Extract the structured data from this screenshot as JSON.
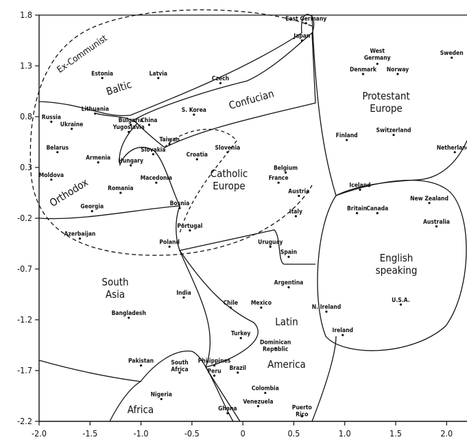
{
  "chart_data": {
    "type": "scatter",
    "title": "",
    "xlabel": "",
    "ylabel": "",
    "xlim": [
      -2.0,
      2.2
    ],
    "ylim": [
      -2.2,
      1.8
    ],
    "grid": false,
    "x_ticks": [
      "-2.0",
      "-1.5",
      "-1.0",
      "-0.5",
      "0",
      "0.5",
      "1.0",
      "1.5",
      "2.0"
    ],
    "x_tick_values": [
      -2.0,
      -1.5,
      -1.0,
      -0.5,
      0,
      0.5,
      1.0,
      1.5,
      2.0
    ],
    "y_ticks": [
      "1.8",
      "1.3",
      "0.8",
      "0.3",
      "-0.2",
      "-0.7",
      "-1.2",
      "-1.7",
      "-2.2"
    ],
    "y_tick_values": [
      1.8,
      1.3,
      0.8,
      0.3,
      -0.2,
      -0.7,
      -1.2,
      -1.7,
      -2.2
    ],
    "regions": [
      {
        "label": "Ex-Communist"
      },
      {
        "label": "Baltic"
      },
      {
        "label": "Confucian"
      },
      {
        "label": "Protestant Europe"
      },
      {
        "label": "Orthodox"
      },
      {
        "label": "Catholic Europe"
      },
      {
        "label": "South Asia"
      },
      {
        "label": "English speaking"
      },
      {
        "label": "Latin America"
      },
      {
        "label": "Africa"
      }
    ],
    "points": [
      {
        "label": "East Germany",
        "x": 0.62,
        "y": 1.72
      },
      {
        "label": "Japan",
        "x": 0.58,
        "y": 1.55
      },
      {
        "label": "Estonia",
        "x": -1.38,
        "y": 1.18
      },
      {
        "label": "Latvia",
        "x": -0.83,
        "y": 1.18
      },
      {
        "label": "Czech",
        "x": -0.22,
        "y": 1.13
      },
      {
        "label": "West Germany",
        "x": 1.32,
        "y": 1.32
      },
      {
        "label": "Denmark",
        "x": 1.18,
        "y": 1.22
      },
      {
        "label": "Norway",
        "x": 1.52,
        "y": 1.22
      },
      {
        "label": "Sweden",
        "x": 2.05,
        "y": 1.38
      },
      {
        "label": "Lithuania",
        "x": -1.45,
        "y": 0.83
      },
      {
        "label": "S. Korea",
        "x": -0.48,
        "y": 0.82
      },
      {
        "label": "Russia",
        "x": -1.88,
        "y": 0.75
      },
      {
        "label": "Ukraine",
        "x": -1.68,
        "y": 0.68
      },
      {
        "label": "Bulgaria",
        "x": -1.1,
        "y": 0.72
      },
      {
        "label": "Yugoslavia",
        "x": -1.12,
        "y": 0.65
      },
      {
        "label": "China",
        "x": -0.92,
        "y": 0.72
      },
      {
        "label": "Finland",
        "x": 1.02,
        "y": 0.57
      },
      {
        "label": "Switzerland",
        "x": 1.48,
        "y": 0.62
      },
      {
        "label": "Taiwan",
        "x": -0.72,
        "y": 0.53
      },
      {
        "label": "Belarus",
        "x": -1.82,
        "y": 0.45
      },
      {
        "label": "Slovakia",
        "x": -0.88,
        "y": 0.43
      },
      {
        "label": "Slovenia",
        "x": -0.15,
        "y": 0.45
      },
      {
        "label": "Croatia",
        "x": -0.45,
        "y": 0.38
      },
      {
        "label": "Netherlands",
        "x": 2.08,
        "y": 0.45
      },
      {
        "label": "Armenia",
        "x": -1.42,
        "y": 0.35
      },
      {
        "label": "Hungary",
        "x": -1.1,
        "y": 0.32
      },
      {
        "label": "Belgium",
        "x": 0.42,
        "y": 0.25
      },
      {
        "label": "France",
        "x": 0.35,
        "y": 0.15
      },
      {
        "label": "Moldova",
        "x": -1.88,
        "y": 0.18
      },
      {
        "label": "Macedonia",
        "x": -0.85,
        "y": 0.15
      },
      {
        "label": "Iceland",
        "x": 1.15,
        "y": 0.08
      },
      {
        "label": "Romania",
        "x": -1.2,
        "y": 0.05
      },
      {
        "label": "Austria",
        "x": 0.55,
        "y": 0.02
      },
      {
        "label": "New Zealand",
        "x": 1.83,
        "y": -0.05
      },
      {
        "label": "Georgia",
        "x": -1.48,
        "y": -0.13
      },
      {
        "label": "Bosnia",
        "x": -0.62,
        "y": -0.1
      },
      {
        "label": "Britain",
        "x": 1.12,
        "y": -0.15
      },
      {
        "label": "Canada",
        "x": 1.32,
        "y": -0.15
      },
      {
        "label": "Italy",
        "x": 0.52,
        "y": -0.18
      },
      {
        "label": "Australia",
        "x": 1.9,
        "y": -0.28
      },
      {
        "label": "Portugal",
        "x": -0.52,
        "y": -0.32
      },
      {
        "label": "Azerbaijan",
        "x": -1.6,
        "y": -0.4
      },
      {
        "label": "Poland",
        "x": -0.72,
        "y": -0.48
      },
      {
        "label": "Uruguay",
        "x": 0.27,
        "y": -0.48
      },
      {
        "label": "Spain",
        "x": 0.45,
        "y": -0.58
      },
      {
        "label": "Argentina",
        "x": 0.45,
        "y": -0.88
      },
      {
        "label": "India",
        "x": -0.58,
        "y": -0.98
      },
      {
        "label": "Chile",
        "x": -0.12,
        "y": -1.08
      },
      {
        "label": "Mexico",
        "x": 0.18,
        "y": -1.08
      },
      {
        "label": "U.S.A.",
        "x": 1.55,
        "y": -1.05
      },
      {
        "label": "N. Ireland",
        "x": 0.82,
        "y": -1.12
      },
      {
        "label": "Bangladesh",
        "x": -1.12,
        "y": -1.18
      },
      {
        "label": "Ireland",
        "x": 0.98,
        "y": -1.35
      },
      {
        "label": "Turkey",
        "x": -0.02,
        "y": -1.38
      },
      {
        "label": "Dominican Republic",
        "x": 0.32,
        "y": -1.48
      },
      {
        "label": "Pakistan",
        "x": -1.0,
        "y": -1.65
      },
      {
        "label": "Philippines",
        "x": -0.28,
        "y": -1.65
      },
      {
        "label": "South Africa",
        "x": -0.62,
        "y": -1.72
      },
      {
        "label": "Peru",
        "x": -0.28,
        "y": -1.75
      },
      {
        "label": "Brazil",
        "x": -0.05,
        "y": -1.72
      },
      {
        "label": "Colombia",
        "x": 0.22,
        "y": -1.92
      },
      {
        "label": "Nigeria",
        "x": -0.8,
        "y": -1.98
      },
      {
        "label": "Venezuela",
        "x": 0.15,
        "y": -2.05
      },
      {
        "label": "Ghana",
        "x": -0.15,
        "y": -2.12
      },
      {
        "label": "Puerto Rico",
        "x": 0.58,
        "y": -2.15
      }
    ]
  }
}
